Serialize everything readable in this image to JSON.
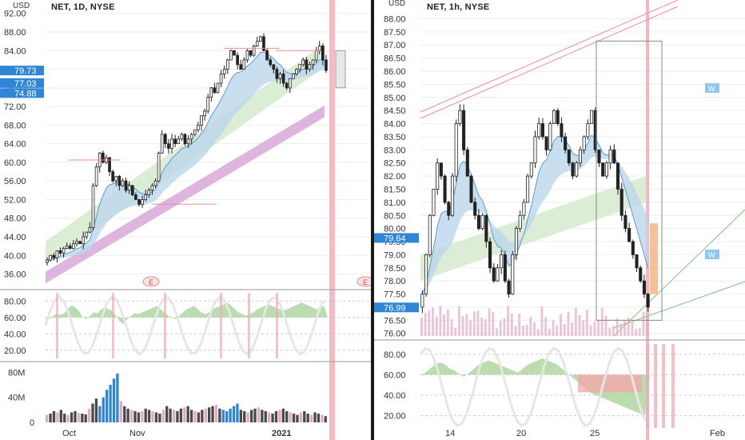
{
  "colors": {
    "background": "#ffffff",
    "divider": "#1a1a1a",
    "grid": "#eeeeee",
    "axis_text": "#333333",
    "price_tag": "#2f86d6",
    "price_tag_text": "#ffffff",
    "ema_fill": "#bcd6ea",
    "green_band": "#d8ebd0",
    "purple_band": "#d8a8d8",
    "red_zone": "#f2a9b4",
    "pink_line": "#f08aa0",
    "osc_fill_green": "#a9d39a",
    "osc_fill_red": "#f2a9a9",
    "osc_line": "#e6e6e6",
    "volume_blue": "#2f86d6",
    "volume_dark": "#4a4a4a",
    "volume_pink": "#e4a9c4"
  },
  "chart_data": [
    {
      "panel": "left-price",
      "title": "NET, 1D, NYSE",
      "type": "candlestick",
      "unit_label": "USD",
      "y_ticks": [
        "92.00",
        "88.00",
        "84.00",
        "80.00",
        "76.00",
        "72.00",
        "68.00",
        "64.00",
        "60.00",
        "56.00",
        "52.00",
        "48.00",
        "44.00",
        "40.00",
        "36.00"
      ],
      "ylim": [
        33,
        93.5
      ],
      "x_ticks": [
        "Oct",
        "Nov",
        "2021"
      ],
      "price_tags": [
        {
          "value": 79.73,
          "label": "79.73"
        },
        {
          "value": 77.03,
          "label": "77.03"
        },
        {
          "value": 74.88,
          "label": "74.88"
        }
      ],
      "event_markers": [
        {
          "label": "E"
        },
        {
          "label": "E"
        }
      ],
      "closes": [
        39,
        40,
        39.5,
        41,
        40.5,
        41.5,
        42,
        41.5,
        42.5,
        43,
        42.5,
        44,
        45,
        46,
        55,
        59,
        62,
        60,
        61,
        58,
        56,
        57,
        55,
        56,
        54,
        55,
        53,
        52,
        51,
        52,
        53,
        54,
        55,
        56,
        62,
        66,
        64,
        63,
        65,
        64,
        65,
        66,
        64,
        65,
        66,
        67,
        68,
        70,
        71,
        74,
        76,
        75,
        77,
        79,
        80,
        82,
        84,
        83,
        81,
        80,
        82,
        84,
        83,
        85,
        86,
        87,
        84,
        82,
        81,
        80,
        78,
        79,
        77,
        76,
        78,
        79,
        80,
        81,
        82,
        80,
        81,
        82,
        84,
        85,
        82,
        79.73
      ]
    },
    {
      "panel": "left-oscillator",
      "type": "area",
      "y_ticks": [
        "80.00",
        "60.00",
        "40.00",
        "20.00"
      ],
      "ylim": [
        10,
        90
      ],
      "values": [
        55,
        58,
        62,
        64,
        63,
        65,
        70,
        75,
        72,
        68,
        60,
        58,
        62,
        66,
        65,
        70,
        72,
        70,
        68,
        62,
        55,
        52,
        58,
        62,
        65,
        64,
        66,
        68,
        70,
        72,
        74,
        70,
        66,
        62,
        60,
        58,
        62,
        66,
        70,
        72,
        74,
        70,
        66,
        64,
        66,
        70,
        72,
        74,
        76,
        78,
        74,
        70,
        66,
        64,
        62,
        64,
        66,
        70,
        72,
        74,
        76,
        74,
        72,
        70,
        68,
        70,
        72,
        74,
        76,
        78,
        76,
        74,
        72,
        70,
        72,
        74
      ]
    },
    {
      "panel": "left-volume",
      "type": "bar",
      "y_ticks": [
        "80M",
        "40M",
        "0"
      ],
      "ylim": [
        0,
        92
      ],
      "values": [
        12,
        14,
        18,
        16,
        20,
        14,
        12,
        16,
        18,
        15,
        14,
        13,
        22,
        30,
        38,
        26,
        40,
        52,
        60,
        70,
        78,
        34,
        26,
        22,
        20,
        18,
        16,
        18,
        22,
        20,
        18,
        16,
        14,
        20,
        26,
        22,
        20,
        18,
        22,
        24,
        26,
        20,
        18,
        16,
        20,
        22,
        24,
        26,
        28,
        22,
        20,
        18,
        22,
        26,
        30,
        20,
        18,
        16,
        20,
        22,
        24,
        20,
        18,
        16,
        14,
        18,
        20,
        22,
        18,
        16,
        14,
        12,
        16,
        18,
        14,
        12,
        16,
        14,
        12,
        10
      ]
    },
    {
      "panel": "right-price",
      "title": "NET, 1h, NYSE",
      "type": "candlestick",
      "unit_label": "USD",
      "y_ticks": [
        "88.00",
        "87.50",
        "87.00",
        "86.50",
        "86.00",
        "85.50",
        "85.00",
        "84.50",
        "84.00",
        "83.50",
        "83.00",
        "82.50",
        "82.00",
        "81.50",
        "81.00",
        "80.50",
        "80.00",
        "79.50",
        "79.00",
        "78.50",
        "78.00",
        "77.50",
        "77.00",
        "76.50",
        "76.00"
      ],
      "ylim": [
        75.9,
        88.35
      ],
      "x_ticks": [
        "14",
        "20",
        "25",
        "Feb"
      ],
      "price_tags": [
        {
          "value": 79.64,
          "label": "79.64"
        },
        {
          "value": 76.99,
          "label": "76.99"
        }
      ],
      "annotations": [
        {
          "label": "W"
        },
        {
          "label": "W"
        }
      ],
      "closes": [
        77.5,
        79,
        80.5,
        81.5,
        82.5,
        82,
        81,
        80.5,
        82,
        84,
        84.5,
        83,
        82,
        81,
        80.5,
        80,
        80.5,
        79.5,
        78.5,
        78,
        78.5,
        79,
        78,
        77.5,
        79,
        80,
        80.5,
        81,
        82,
        82.5,
        83.5,
        84,
        83.5,
        83,
        84,
        84.5,
        84,
        83.5,
        83,
        82.5,
        82,
        82.5,
        83,
        83.5,
        84,
        84.5,
        83,
        82.5,
        82,
        82.5,
        83,
        82.5,
        81.5,
        80.5,
        80,
        79.5,
        79,
        78.5,
        78,
        77.5,
        77
      ]
    },
    {
      "panel": "right-oscillator",
      "type": "area",
      "y_ticks": [
        "80.00",
        "60.00",
        "40.00",
        "20.00"
      ],
      "ylim": [
        8,
        90
      ],
      "values": [
        60,
        62,
        66,
        70,
        72,
        70,
        66,
        64,
        60,
        58,
        62,
        66,
        70,
        72,
        74,
        72,
        70,
        68,
        66,
        64,
        62,
        66,
        70,
        72,
        74,
        76,
        74,
        72,
        70,
        66,
        62,
        58,
        54,
        50,
        46,
        42,
        40,
        38,
        36,
        34,
        32,
        30,
        28,
        26,
        24,
        22,
        20
      ]
    }
  ]
}
